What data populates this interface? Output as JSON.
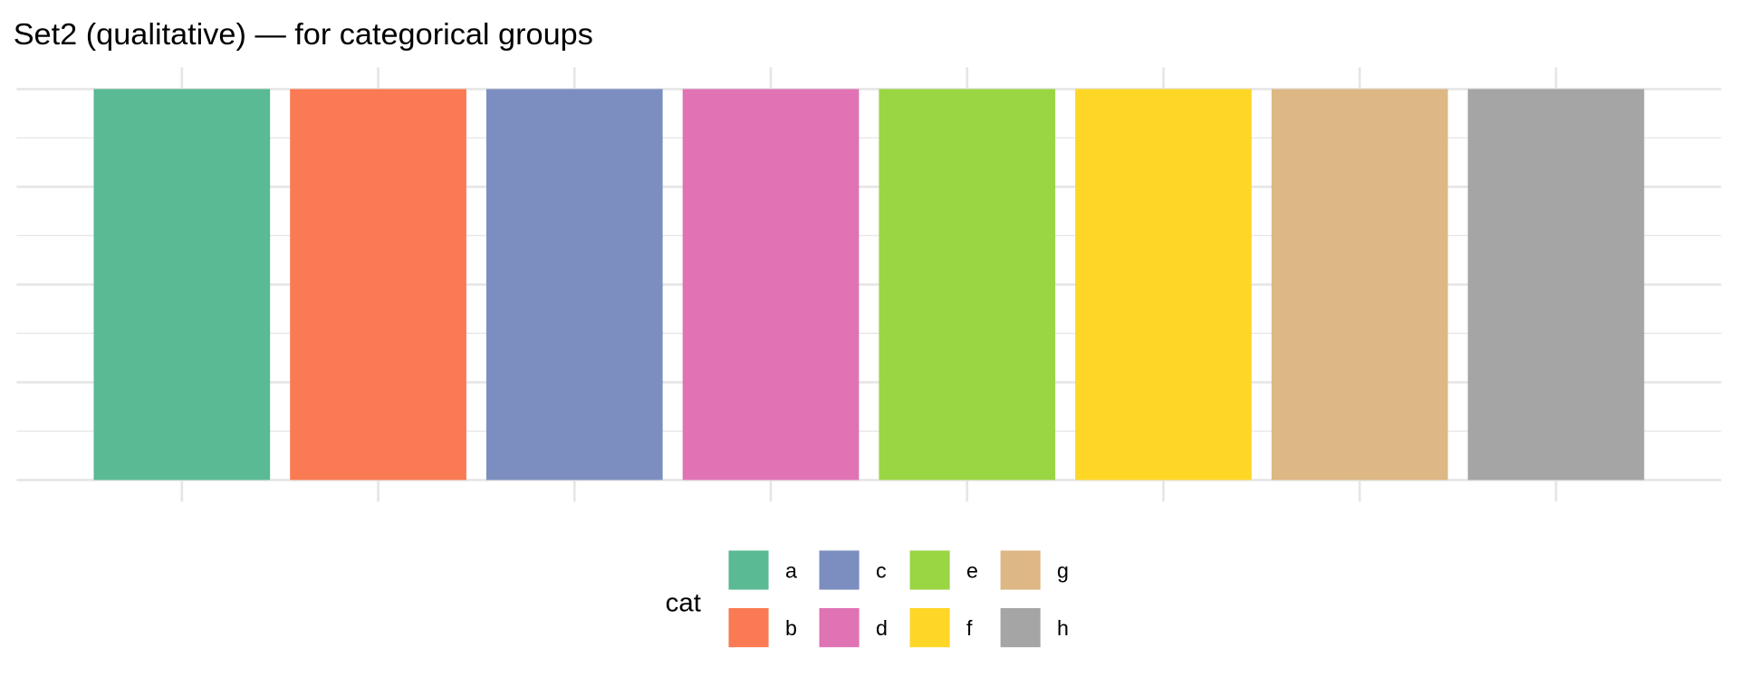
{
  "chart_data": {
    "type": "bar",
    "title": "Set2 (qualitative) — for categorical groups",
    "xlabel": "",
    "ylabel": "",
    "categories": [
      "a",
      "b",
      "c",
      "d",
      "e",
      "f",
      "g",
      "h"
    ],
    "values": [
      1,
      1,
      1,
      1,
      1,
      1,
      1,
      1
    ],
    "colors": [
      "#59BA93",
      "#F97A53",
      "#7B8EBF",
      "#E073B4",
      "#9AD544",
      "#FED626",
      "#DDB784",
      "#A5A5A5"
    ],
    "ylim": [
      0,
      1
    ],
    "grid": true,
    "axis_tick_labels_shown": false,
    "legend": {
      "title": "cat",
      "position": "bottom",
      "entries": [
        "a",
        "b",
        "c",
        "d",
        "e",
        "f",
        "g",
        "h"
      ]
    }
  }
}
